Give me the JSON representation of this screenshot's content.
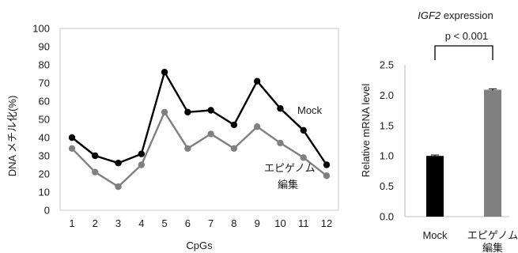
{
  "chart_data": [
    {
      "type": "line",
      "xlabel": "CpGs",
      "ylabel": "DNA メチル化(%)",
      "categories": [
        "1",
        "2",
        "3",
        "4",
        "5",
        "6",
        "7",
        "8",
        "9",
        "10",
        "11",
        "12"
      ],
      "ylim": [
        0,
        100
      ],
      "yticks": [
        0,
        10,
        20,
        30,
        40,
        50,
        60,
        70,
        80,
        90,
        100
      ],
      "grid": false,
      "series": [
        {
          "name": "Mock",
          "color": "#000000",
          "values": [
            40,
            30,
            26,
            31,
            76,
            54,
            55,
            47,
            71,
            56,
            44,
            25
          ]
        },
        {
          "name_lines": [
            "エピゲノム",
            "編集"
          ],
          "color": "#808080",
          "values": [
            34,
            21,
            13,
            25,
            54,
            34,
            42,
            34,
            46,
            37,
            29,
            19
          ]
        }
      ]
    },
    {
      "type": "bar",
      "title_italic": "IGF2",
      "title_rest": " expression",
      "ylabel": "Relative mRNA level",
      "categories": [
        "Mock",
        "エピゲノム 編集"
      ],
      "category_lines": [
        [
          "Mock"
        ],
        [
          "エピゲノム",
          "編集"
        ]
      ],
      "values": [
        1.0,
        2.09
      ],
      "errors": [
        0.015,
        0.015
      ],
      "colors": [
        "#000000",
        "#808080"
      ],
      "ylim": [
        0,
        2.5
      ],
      "yticks": [
        0.0,
        0.5,
        1.0,
        1.5,
        2.0,
        2.5
      ],
      "tick_labels": [
        "0.0",
        "0.5",
        "1.0",
        "1.5",
        "2.0",
        "2.5"
      ],
      "annotation": "p < 0.001",
      "grid": false
    }
  ]
}
